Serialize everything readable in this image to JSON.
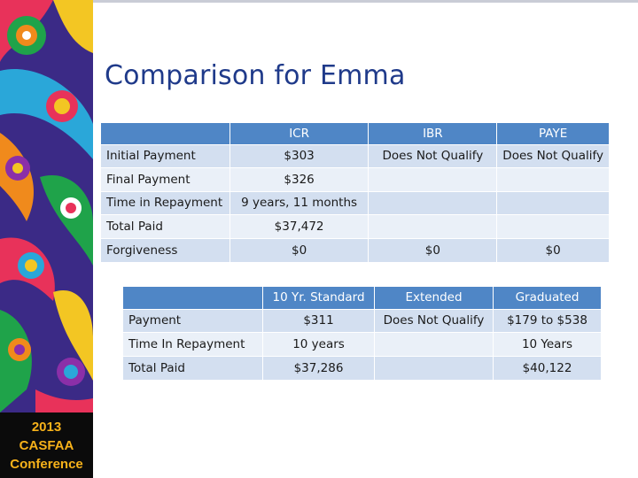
{
  "title": "Comparison for Emma",
  "badge": {
    "year": "2013",
    "org": "CASFAA",
    "event": "Conference"
  },
  "table1": {
    "headers": [
      "",
      "ICR",
      "IBR",
      "PAYE"
    ],
    "rows": [
      [
        "Initial Payment",
        "$303",
        "Does Not Qualify",
        "Does Not Qualify"
      ],
      [
        "Final Payment",
        "$326",
        "",
        ""
      ],
      [
        "Time in Repayment",
        "9 years, 11 months",
        "",
        ""
      ],
      [
        "Total Paid",
        "$37,472",
        "",
        ""
      ],
      [
        "Forgiveness",
        "$0",
        "$0",
        "$0"
      ]
    ]
  },
  "table2": {
    "headers": [
      "",
      "10 Yr. Standard",
      "Extended",
      "Graduated"
    ],
    "rows": [
      [
        "Payment",
        "$311",
        "Does Not Qualify",
        "$179 to $538"
      ],
      [
        "Time In Repayment",
        "10 years",
        "",
        "10 Years"
      ],
      [
        "Total Paid",
        "$37,286",
        "",
        "$40,122"
      ]
    ]
  },
  "colors": {
    "title": "#1f3a8a",
    "header": "#4f86c6",
    "row_dark": "#d3dff0",
    "row_light": "#eaf0f8",
    "badge_text": "#f7b21a"
  }
}
